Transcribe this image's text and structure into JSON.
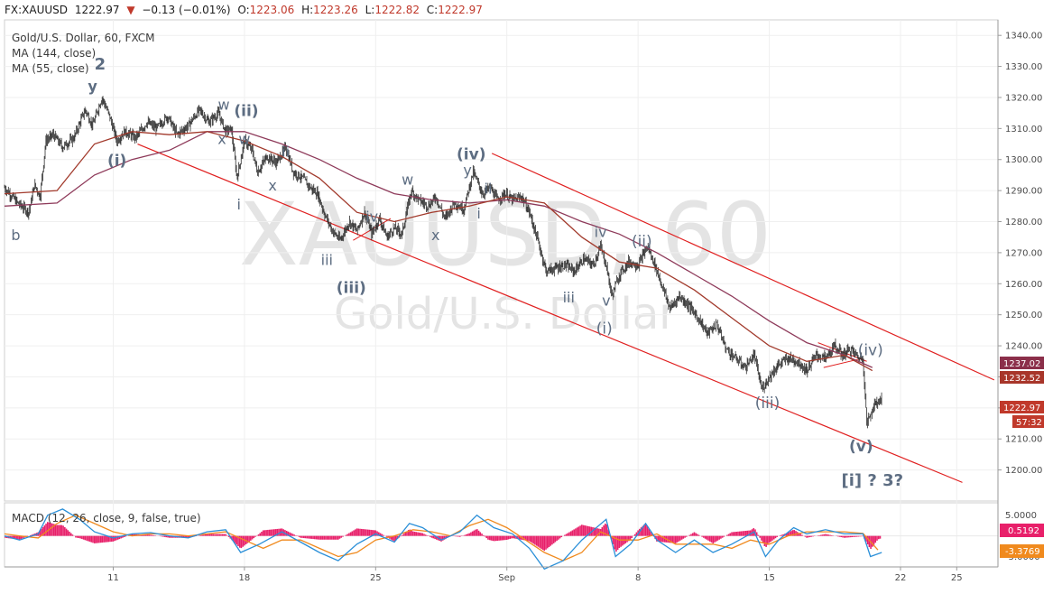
{
  "header": {
    "symbol": "FX:XAUUSD",
    "last": "1222.97",
    "change": "−0.13 (−0.01%)",
    "open_label": "O:",
    "open": "1223.06",
    "high_label": "H:",
    "high": "1223.26",
    "low_label": "L:",
    "low": "1222.82",
    "close_label": "C:",
    "close": "1222.97"
  },
  "legend": {
    "title": "Gold/U.S. Dollar, 60, FXCM",
    "ma1": "MA (144, close)",
    "ma2": "MA (55, close)",
    "macd": "MACD (12, 26, close, 9, false, true)"
  },
  "watermark": {
    "symbol": "XAUUSD, 60",
    "name": "Gold/U.S. Dollar"
  },
  "colors": {
    "up": "#53b987",
    "down": "#c0392b",
    "candle": "#2f2f2f",
    "ma144": "#8e3a5a",
    "ma55": "#a23a2c",
    "channel": "#e02020",
    "macd": "#2a8fd8",
    "signal": "#f08a1e",
    "hist": "#e8206a",
    "wave": "#5d6d82"
  },
  "price_tags": {
    "ma144": "1237.02",
    "ma55": "1232.52",
    "last": "1222.97",
    "countdown": "57:32",
    "macd_hist": "0.5192",
    "macd_signal": "-3.3769"
  },
  "chart_data": {
    "type": "candlestick",
    "title": "Gold/U.S. Dollar, 60, FXCM",
    "xlabel": "",
    "ylabel": "",
    "y_ticks": [
      1200,
      1210,
      1220,
      1230,
      1240,
      1250,
      1260,
      1270,
      1280,
      1290,
      1300,
      1310,
      1320,
      1330,
      1340
    ],
    "ylim": [
      1190,
      1345
    ],
    "x_ticks": [
      {
        "label": "11",
        "d": 11
      },
      {
        "label": "18",
        "d": 18
      },
      {
        "label": "25",
        "d": 25
      },
      {
        "label": "Sep",
        "d": 32
      },
      {
        "label": "8",
        "d": 39
      },
      {
        "label": "15",
        "d": 46
      },
      {
        "label": "22",
        "d": 53
      },
      {
        "label": "25",
        "d": 56
      }
    ],
    "xlim_days": [
      5.2,
      58.2
    ],
    "price_path": [
      [
        5.2,
        1291
      ],
      [
        5.9,
        1286
      ],
      [
        6.5,
        1283
      ],
      [
        6.8,
        1292
      ],
      [
        7.1,
        1288
      ],
      [
        7.4,
        1306
      ],
      [
        7.8,
        1308
      ],
      [
        8.3,
        1304
      ],
      [
        8.9,
        1307
      ],
      [
        9.5,
        1316
      ],
      [
        9.9,
        1311
      ],
      [
        10.4,
        1320
      ],
      [
        10.8,
        1314
      ],
      [
        11.2,
        1306
      ],
      [
        11.6,
        1309
      ],
      [
        12.2,
        1307
      ],
      [
        12.8,
        1312
      ],
      [
        13.3,
        1310
      ],
      [
        13.9,
        1314
      ],
      [
        14.4,
        1308
      ],
      [
        15.0,
        1311
      ],
      [
        15.6,
        1316
      ],
      [
        16.1,
        1312
      ],
      [
        16.6,
        1315
      ],
      [
        17.0,
        1309
      ],
      [
        17.3,
        1310
      ],
      [
        17.6,
        1294
      ],
      [
        18.0,
        1306
      ],
      [
        18.4,
        1303
      ],
      [
        18.7,
        1296
      ],
      [
        19.2,
        1301
      ],
      [
        19.7,
        1299
      ],
      [
        20.2,
        1304
      ],
      [
        20.6,
        1296
      ],
      [
        21.1,
        1294
      ],
      [
        21.5,
        1291
      ],
      [
        21.9,
        1289
      ],
      [
        22.3,
        1282
      ],
      [
        22.7,
        1277
      ],
      [
        23.1,
        1274
      ],
      [
        23.6,
        1280
      ],
      [
        24.0,
        1277
      ],
      [
        24.4,
        1283
      ],
      [
        24.8,
        1276
      ],
      [
        25.2,
        1281
      ],
      [
        25.6,
        1275
      ],
      [
        26.0,
        1278
      ],
      [
        26.4,
        1276
      ],
      [
        26.9,
        1290
      ],
      [
        27.3,
        1287
      ],
      [
        27.8,
        1285
      ],
      [
        28.2,
        1288
      ],
      [
        28.7,
        1281
      ],
      [
        29.2,
        1286
      ],
      [
        29.7,
        1284
      ],
      [
        30.2,
        1296
      ],
      [
        30.7,
        1289
      ],
      [
        31.1,
        1291
      ],
      [
        31.5,
        1287
      ],
      [
        31.9,
        1289
      ],
      [
        32.3,
        1287
      ],
      [
        32.8,
        1288
      ],
      [
        33.2,
        1283
      ],
      [
        33.6,
        1275
      ],
      [
        34.1,
        1264
      ],
      [
        34.6,
        1265
      ],
      [
        35.1,
        1266
      ],
      [
        35.6,
        1264
      ],
      [
        36.1,
        1268
      ],
      [
        36.6,
        1266
      ],
      [
        37.0,
        1272
      ],
      [
        37.3,
        1266
      ],
      [
        37.6,
        1256
      ],
      [
        38.0,
        1263
      ],
      [
        38.5,
        1267
      ],
      [
        39.0,
        1266
      ],
      [
        39.5,
        1272
      ],
      [
        39.9,
        1266
      ],
      [
        40.3,
        1259
      ],
      [
        40.7,
        1252
      ],
      [
        41.2,
        1256
      ],
      [
        41.7,
        1253
      ],
      [
        42.2,
        1249
      ],
      [
        42.7,
        1244
      ],
      [
        43.2,
        1247
      ],
      [
        43.7,
        1239
      ],
      [
        44.2,
        1236
      ],
      [
        44.7,
        1233
      ],
      [
        45.2,
        1237
      ],
      [
        45.6,
        1226
      ],
      [
        46.0,
        1230
      ],
      [
        46.5,
        1234
      ],
      [
        47.0,
        1236
      ],
      [
        47.5,
        1235
      ],
      [
        48.0,
        1232
      ],
      [
        48.5,
        1237
      ],
      [
        49.0,
        1236
      ],
      [
        49.5,
        1240
      ],
      [
        49.9,
        1237
      ],
      [
        50.3,
        1239
      ],
      [
        50.8,
        1236
      ],
      [
        51.0,
        1236
      ],
      [
        51.2,
        1215
      ],
      [
        51.6,
        1221
      ],
      [
        52.0,
        1223
      ]
    ],
    "ma144": [
      [
        5.2,
        1285
      ],
      [
        8,
        1286
      ],
      [
        10,
        1295
      ],
      [
        12,
        1300
      ],
      [
        14,
        1303
      ],
      [
        16,
        1309
      ],
      [
        18,
        1309
      ],
      [
        20,
        1305
      ],
      [
        22,
        1300
      ],
      [
        24,
        1294
      ],
      [
        26,
        1289
      ],
      [
        28,
        1287
      ],
      [
        30,
        1286
      ],
      [
        32,
        1287
      ],
      [
        34,
        1285
      ],
      [
        36,
        1280
      ],
      [
        38,
        1276
      ],
      [
        40,
        1270
      ],
      [
        42,
        1263
      ],
      [
        44,
        1256
      ],
      [
        46,
        1248
      ],
      [
        48,
        1241
      ],
      [
        50,
        1237
      ],
      [
        51.5,
        1233
      ]
    ],
    "ma55": [
      [
        5.2,
        1289
      ],
      [
        8,
        1290
      ],
      [
        10,
        1305
      ],
      [
        12,
        1309
      ],
      [
        14,
        1308
      ],
      [
        16,
        1309
      ],
      [
        18,
        1306
      ],
      [
        20,
        1301
      ],
      [
        22,
        1294
      ],
      [
        24,
        1283
      ],
      [
        26,
        1280
      ],
      [
        28,
        1283
      ],
      [
        30,
        1285
      ],
      [
        32,
        1288
      ],
      [
        34,
        1286
      ],
      [
        36,
        1275
      ],
      [
        38,
        1267
      ],
      [
        40,
        1265
      ],
      [
        42,
        1258
      ],
      [
        44,
        1249
      ],
      [
        46,
        1240
      ],
      [
        48,
        1235
      ],
      [
        50,
        1237
      ],
      [
        51.5,
        1232
      ]
    ],
    "channel_upper": [
      [
        31.2,
        1302
      ],
      [
        58.0,
        1229
      ]
    ],
    "channel_lower": [
      [
        12.3,
        1305
      ],
      [
        56.3,
        1196
      ]
    ],
    "small_lines": [
      [
        [
          23.8,
          1274
        ],
        [
          25.8,
          1281
        ]
      ],
      [
        [
          48.6,
          1241
        ],
        [
          51.2,
          1235
        ]
      ],
      [
        [
          48.9,
          1233
        ],
        [
          51.0,
          1236
        ]
      ]
    ],
    "wave_labels": [
      {
        "text": "2",
        "d": 10.3,
        "p": 1329,
        "bold": true,
        "size": 18
      },
      {
        "text": "y",
        "d": 9.9,
        "p": 1322,
        "bold": true,
        "size": 16
      },
      {
        "text": "(ii)",
        "d": 18.1,
        "p": 1314,
        "bold": true,
        "size": 17
      },
      {
        "text": "w",
        "d": 16.9,
        "p": 1316,
        "size": 16
      },
      {
        "text": "x",
        "d": 16.8,
        "p": 1305,
        "size": 16
      },
      {
        "text": "w",
        "d": 18.0,
        "p": 1305,
        "size": 16
      },
      {
        "text": "(i)",
        "d": 11.2,
        "p": 1298,
        "bold": true,
        "size": 17
      },
      {
        "text": "ii",
        "d": 20.2,
        "p": 1301,
        "size": 16
      },
      {
        "text": "x",
        "d": 19.5,
        "p": 1290,
        "size": 16
      },
      {
        "text": "i",
        "d": 17.7,
        "p": 1284,
        "size": 16
      },
      {
        "text": "b",
        "d": 5.8,
        "p": 1274,
        "size": 16
      },
      {
        "text": "iii",
        "d": 22.4,
        "p": 1266,
        "size": 16
      },
      {
        "text": "(iii)",
        "d": 23.7,
        "p": 1257,
        "bold": true,
        "size": 17
      },
      {
        "text": "iv",
        "d": 24.8,
        "p": 1280,
        "size": 16
      },
      {
        "text": "w",
        "d": 26.7,
        "p": 1292,
        "size": 16
      },
      {
        "text": "x",
        "d": 28.2,
        "p": 1274,
        "size": 16
      },
      {
        "text": "(iv)",
        "d": 30.1,
        "p": 1300,
        "bold": true,
        "size": 17
      },
      {
        "text": "y",
        "d": 29.9,
        "p": 1295,
        "size": 16
      },
      {
        "text": "ii",
        "d": 31.0,
        "p": 1289,
        "size": 16
      },
      {
        "text": "i",
        "d": 30.5,
        "p": 1281,
        "size": 16
      },
      {
        "text": "iv",
        "d": 37.0,
        "p": 1275,
        "size": 16
      },
      {
        "text": "(ii)",
        "d": 39.2,
        "p": 1272,
        "size": 17
      },
      {
        "text": "iii",
        "d": 35.3,
        "p": 1254,
        "size": 16
      },
      {
        "text": "v",
        "d": 37.3,
        "p": 1253,
        "size": 16
      },
      {
        "text": "(i)",
        "d": 37.2,
        "p": 1244,
        "size": 17
      },
      {
        "text": "(iii)",
        "d": 45.9,
        "p": 1220,
        "size": 17
      },
      {
        "text": "(iv)",
        "d": 51.4,
        "p": 1237,
        "size": 17
      },
      {
        "text": "(v)",
        "d": 50.9,
        "p": 1206,
        "bold": true,
        "size": 17
      },
      {
        "text": "[i] ? 3?",
        "d": 51.5,
        "p": 1195,
        "bold": true,
        "size": 18
      }
    ],
    "macd": {
      "ticks": [
        {
          "label": "5.0000",
          "v": 5
        },
        {
          "label": "-5.0000",
          "v": -5
        }
      ],
      "ylim": [
        -7.5,
        8.0
      ],
      "macd_line": [
        [
          5.2,
          0
        ],
        [
          6,
          -1
        ],
        [
          7,
          0.5
        ],
        [
          7.5,
          5
        ],
        [
          8.3,
          6.5
        ],
        [
          9.2,
          4
        ],
        [
          10,
          1
        ],
        [
          11,
          -0.5
        ],
        [
          12,
          0.5
        ],
        [
          13,
          0.8
        ],
        [
          14,
          0
        ],
        [
          15,
          -0.5
        ],
        [
          16,
          1
        ],
        [
          17,
          1.5
        ],
        [
          17.8,
          -4
        ],
        [
          18.8,
          -2
        ],
        [
          20,
          1
        ],
        [
          21,
          -1.5
        ],
        [
          22,
          -4
        ],
        [
          23,
          -6
        ],
        [
          24,
          -2
        ],
        [
          25,
          0.5
        ],
        [
          26,
          -1.5
        ],
        [
          26.8,
          3
        ],
        [
          27.5,
          2
        ],
        [
          28.5,
          -1
        ],
        [
          29.5,
          1
        ],
        [
          30.4,
          5
        ],
        [
          31.3,
          2
        ],
        [
          32.3,
          0.5
        ],
        [
          33.2,
          -3
        ],
        [
          34,
          -8
        ],
        [
          35,
          -6
        ],
        [
          36,
          -1
        ],
        [
          37.3,
          4
        ],
        [
          37.8,
          -5
        ],
        [
          38.6,
          -2
        ],
        [
          39.4,
          3
        ],
        [
          40,
          -1
        ],
        [
          41,
          -4
        ],
        [
          42,
          -1
        ],
        [
          43,
          -4
        ],
        [
          44,
          -2
        ],
        [
          45.2,
          1
        ],
        [
          45.8,
          -5
        ],
        [
          46.5,
          -1
        ],
        [
          47.3,
          2
        ],
        [
          48,
          0.5
        ],
        [
          49,
          1.5
        ],
        [
          50,
          0.5
        ],
        [
          51,
          0.5
        ],
        [
          51.4,
          -5
        ],
        [
          52,
          -4
        ]
      ],
      "signal_line": [
        [
          5.2,
          0.5
        ],
        [
          6,
          0
        ],
        [
          7,
          -0.5
        ],
        [
          8,
          3
        ],
        [
          9,
          5
        ],
        [
          10,
          3
        ],
        [
          11,
          1
        ],
        [
          12,
          0
        ],
        [
          13,
          0.5
        ],
        [
          14,
          0.5
        ],
        [
          15,
          0
        ],
        [
          16,
          0.5
        ],
        [
          17,
          1
        ],
        [
          18,
          -1
        ],
        [
          19,
          -3
        ],
        [
          20,
          -1
        ],
        [
          21,
          -1
        ],
        [
          22,
          -3
        ],
        [
          23,
          -5
        ],
        [
          24,
          -4
        ],
        [
          25,
          -1
        ],
        [
          26,
          0
        ],
        [
          27,
          1.5
        ],
        [
          28,
          1
        ],
        [
          29,
          0
        ],
        [
          30,
          2.5
        ],
        [
          31,
          4
        ],
        [
          32,
          2
        ],
        [
          33,
          -1
        ],
        [
          34,
          -4
        ],
        [
          35,
          -6
        ],
        [
          36,
          -4
        ],
        [
          37,
          1
        ],
        [
          38,
          -1
        ],
        [
          39,
          -1
        ],
        [
          40,
          0.5
        ],
        [
          41,
          -2
        ],
        [
          42,
          -2
        ],
        [
          43,
          -2
        ],
        [
          44,
          -3
        ],
        [
          45,
          -1
        ],
        [
          46,
          -2
        ],
        [
          47,
          0
        ],
        [
          48,
          1
        ],
        [
          49,
          1
        ],
        [
          50,
          1
        ],
        [
          51,
          0.6
        ],
        [
          51.8,
          -3.4
        ]
      ]
    }
  }
}
